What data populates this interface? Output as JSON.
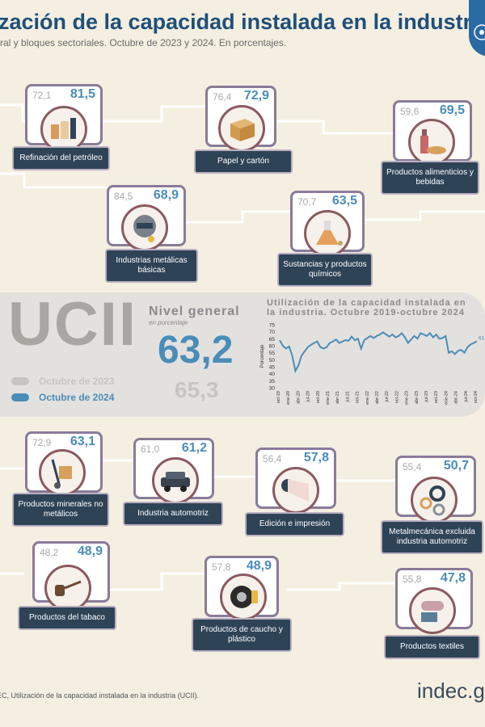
{
  "header": {
    "title": "zación de la capacidad instalada en la industria",
    "subtitle": "ral y bloques sectoriales. Octubre de 2023 y 2024. En porcentajes."
  },
  "colors": {
    "accent_2024": "#4a8db8",
    "muted_2023": "#c8c5c0",
    "label_bg": "#2f4357",
    "frame": "#8a7b99"
  },
  "sectors": [
    {
      "v2023": "72,1",
      "v2024": "81,5",
      "label": "Refinación del petróleo",
      "icon": "oil-refinery-icon"
    },
    {
      "v2023": "76,4",
      "v2024": "72,9",
      "label": "Papel y cartón",
      "icon": "cardboard-box-icon"
    },
    {
      "v2023": "59,6",
      "v2024": "69,5",
      "label": "Productos alimenticios y bebidas",
      "icon": "bottle-bread-icon"
    },
    {
      "v2023": "84,5",
      "v2024": "68,9",
      "label": "Industrias metálicas básicas",
      "icon": "welding-helmet-icon"
    },
    {
      "v2023": "70,7",
      "v2024": "63,5",
      "label": "Sustancias y productos químicos",
      "icon": "flask-icon"
    },
    {
      "v2023": "72,9",
      "v2024": "63,1",
      "label": "Productos minerales no metálicos",
      "icon": "hand-truck-icon"
    },
    {
      "v2023": "61,0",
      "v2024": "61,2",
      "label": "Industria automotriz",
      "icon": "car-icon"
    },
    {
      "v2023": "56,4",
      "v2024": "57,8",
      "label": "Edición e impresión",
      "icon": "paper-roll-icon"
    },
    {
      "v2023": "55,4",
      "v2024": "50,7",
      "label": "Metalmecánica excluida industria automotriz",
      "icon": "gears-icon"
    },
    {
      "v2023": "48,2",
      "v2024": "48,9",
      "label": "Productos del tabaco",
      "icon": "pipe-icon"
    },
    {
      "v2023": "57,8",
      "v2024": "48,9",
      "label": "Productos de caucho y plástico",
      "icon": "tire-icon"
    },
    {
      "v2023": "55,8",
      "v2024": "47,8",
      "label": "Productos textiles",
      "icon": "fabric-roll-icon"
    }
  ],
  "general": {
    "ucii": "UCII",
    "title": "Nivel general",
    "sub": "en porcentaje",
    "v2024": "63,2",
    "v2023": "65,3",
    "legend_2023": "Octubre de 2023",
    "legend_2024": "Octubre de 2024"
  },
  "footer": {
    "source": "EC, Utilización de la capacidad instalada en la industria (UCII).",
    "logo": "indec.g"
  },
  "chart_data": {
    "type": "line",
    "title": "Utilización de la capacidad instalada en la industria. Octubre 2019-octubre 2024",
    "ylabel": "Porcentaje",
    "ylim": [
      30,
      75
    ],
    "yticks": [
      30,
      35,
      40,
      45,
      50,
      55,
      60,
      65,
      70,
      75
    ],
    "xticks": [
      "oct-19",
      "ene-20",
      "abr-20",
      "jul-20",
      "oct-20",
      "ene-21",
      "abr-21",
      "jul-21",
      "oct-21",
      "ene-22",
      "abr-22",
      "jul-22",
      "oct-22",
      "ene-23",
      "abr-23",
      "jul-23",
      "oct-23",
      "ene-24",
      "abr-24",
      "jul-24",
      "oct-24"
    ],
    "end_label": "63,2",
    "series": [
      {
        "values": [
          64.0,
          60.0,
          58.0,
          59.5,
          53.0,
          42.0,
          46.0,
          53.0,
          56.0,
          59.0,
          60.5,
          62.0,
          63.0,
          59.0,
          58.0,
          59.0,
          62.0,
          63.0,
          64.5,
          62.0,
          63.0,
          64.0,
          63.5,
          66.5,
          64.0,
          65.0,
          58.0,
          64.0,
          65.5,
          67.0,
          65.5,
          67.0,
          68.0,
          69.5,
          68.0,
          66.5,
          68.0,
          66.0,
          67.0,
          69.0,
          66.0,
          62.0,
          64.5,
          67.0,
          65.0,
          69.0,
          68.0,
          67.0,
          69.0,
          66.0,
          68.0,
          65.0,
          65.5,
          67.0,
          55.0,
          56.0,
          54.0,
          56.5,
          57.0,
          55.0,
          59.0,
          61.0,
          62.0,
          63.2
        ]
      }
    ]
  }
}
